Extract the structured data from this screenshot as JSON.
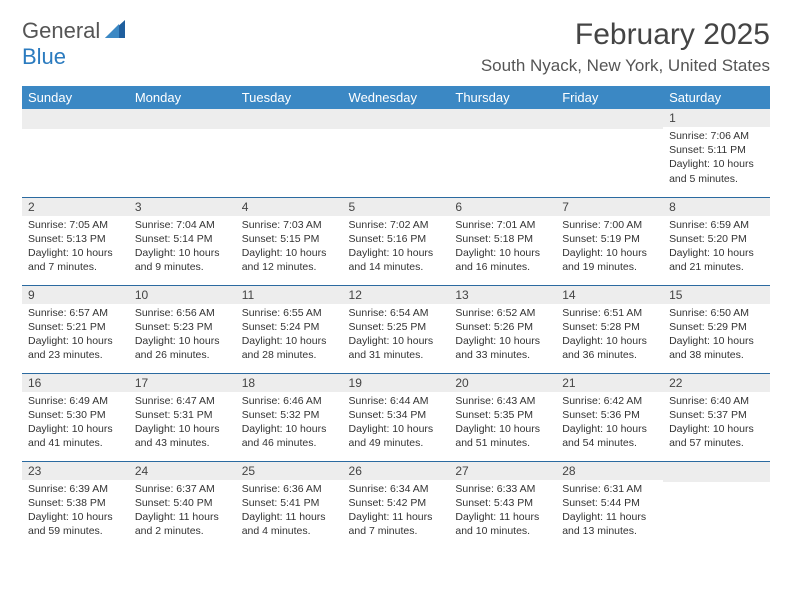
{
  "logo": {
    "line1": "General",
    "line2": "Blue"
  },
  "title": "February 2025",
  "location": "South Nyack, New York, United States",
  "theme": {
    "header_bg": "#3b88c4",
    "rule": "#2b6aa0",
    "daynum_bg": "#ededed"
  },
  "day_headers": [
    "Sunday",
    "Monday",
    "Tuesday",
    "Wednesday",
    "Thursday",
    "Friday",
    "Saturday"
  ],
  "weeks": [
    [
      null,
      null,
      null,
      null,
      null,
      null,
      {
        "n": "1",
        "sr": "Sunrise: 7:06 AM",
        "ss": "Sunset: 5:11 PM",
        "d1": "Daylight: 10 hours",
        "d2": "and 5 minutes."
      }
    ],
    [
      {
        "n": "2",
        "sr": "Sunrise: 7:05 AM",
        "ss": "Sunset: 5:13 PM",
        "d1": "Daylight: 10 hours",
        "d2": "and 7 minutes."
      },
      {
        "n": "3",
        "sr": "Sunrise: 7:04 AM",
        "ss": "Sunset: 5:14 PM",
        "d1": "Daylight: 10 hours",
        "d2": "and 9 minutes."
      },
      {
        "n": "4",
        "sr": "Sunrise: 7:03 AM",
        "ss": "Sunset: 5:15 PM",
        "d1": "Daylight: 10 hours",
        "d2": "and 12 minutes."
      },
      {
        "n": "5",
        "sr": "Sunrise: 7:02 AM",
        "ss": "Sunset: 5:16 PM",
        "d1": "Daylight: 10 hours",
        "d2": "and 14 minutes."
      },
      {
        "n": "6",
        "sr": "Sunrise: 7:01 AM",
        "ss": "Sunset: 5:18 PM",
        "d1": "Daylight: 10 hours",
        "d2": "and 16 minutes."
      },
      {
        "n": "7",
        "sr": "Sunrise: 7:00 AM",
        "ss": "Sunset: 5:19 PM",
        "d1": "Daylight: 10 hours",
        "d2": "and 19 minutes."
      },
      {
        "n": "8",
        "sr": "Sunrise: 6:59 AM",
        "ss": "Sunset: 5:20 PM",
        "d1": "Daylight: 10 hours",
        "d2": "and 21 minutes."
      }
    ],
    [
      {
        "n": "9",
        "sr": "Sunrise: 6:57 AM",
        "ss": "Sunset: 5:21 PM",
        "d1": "Daylight: 10 hours",
        "d2": "and 23 minutes."
      },
      {
        "n": "10",
        "sr": "Sunrise: 6:56 AM",
        "ss": "Sunset: 5:23 PM",
        "d1": "Daylight: 10 hours",
        "d2": "and 26 minutes."
      },
      {
        "n": "11",
        "sr": "Sunrise: 6:55 AM",
        "ss": "Sunset: 5:24 PM",
        "d1": "Daylight: 10 hours",
        "d2": "and 28 minutes."
      },
      {
        "n": "12",
        "sr": "Sunrise: 6:54 AM",
        "ss": "Sunset: 5:25 PM",
        "d1": "Daylight: 10 hours",
        "d2": "and 31 minutes."
      },
      {
        "n": "13",
        "sr": "Sunrise: 6:52 AM",
        "ss": "Sunset: 5:26 PM",
        "d1": "Daylight: 10 hours",
        "d2": "and 33 minutes."
      },
      {
        "n": "14",
        "sr": "Sunrise: 6:51 AM",
        "ss": "Sunset: 5:28 PM",
        "d1": "Daylight: 10 hours",
        "d2": "and 36 minutes."
      },
      {
        "n": "15",
        "sr": "Sunrise: 6:50 AM",
        "ss": "Sunset: 5:29 PM",
        "d1": "Daylight: 10 hours",
        "d2": "and 38 minutes."
      }
    ],
    [
      {
        "n": "16",
        "sr": "Sunrise: 6:49 AM",
        "ss": "Sunset: 5:30 PM",
        "d1": "Daylight: 10 hours",
        "d2": "and 41 minutes."
      },
      {
        "n": "17",
        "sr": "Sunrise: 6:47 AM",
        "ss": "Sunset: 5:31 PM",
        "d1": "Daylight: 10 hours",
        "d2": "and 43 minutes."
      },
      {
        "n": "18",
        "sr": "Sunrise: 6:46 AM",
        "ss": "Sunset: 5:32 PM",
        "d1": "Daylight: 10 hours",
        "d2": "and 46 minutes."
      },
      {
        "n": "19",
        "sr": "Sunrise: 6:44 AM",
        "ss": "Sunset: 5:34 PM",
        "d1": "Daylight: 10 hours",
        "d2": "and 49 minutes."
      },
      {
        "n": "20",
        "sr": "Sunrise: 6:43 AM",
        "ss": "Sunset: 5:35 PM",
        "d1": "Daylight: 10 hours",
        "d2": "and 51 minutes."
      },
      {
        "n": "21",
        "sr": "Sunrise: 6:42 AM",
        "ss": "Sunset: 5:36 PM",
        "d1": "Daylight: 10 hours",
        "d2": "and 54 minutes."
      },
      {
        "n": "22",
        "sr": "Sunrise: 6:40 AM",
        "ss": "Sunset: 5:37 PM",
        "d1": "Daylight: 10 hours",
        "d2": "and 57 minutes."
      }
    ],
    [
      {
        "n": "23",
        "sr": "Sunrise: 6:39 AM",
        "ss": "Sunset: 5:38 PM",
        "d1": "Daylight: 10 hours",
        "d2": "and 59 minutes."
      },
      {
        "n": "24",
        "sr": "Sunrise: 6:37 AM",
        "ss": "Sunset: 5:40 PM",
        "d1": "Daylight: 11 hours",
        "d2": "and 2 minutes."
      },
      {
        "n": "25",
        "sr": "Sunrise: 6:36 AM",
        "ss": "Sunset: 5:41 PM",
        "d1": "Daylight: 11 hours",
        "d2": "and 4 minutes."
      },
      {
        "n": "26",
        "sr": "Sunrise: 6:34 AM",
        "ss": "Sunset: 5:42 PM",
        "d1": "Daylight: 11 hours",
        "d2": "and 7 minutes."
      },
      {
        "n": "27",
        "sr": "Sunrise: 6:33 AM",
        "ss": "Sunset: 5:43 PM",
        "d1": "Daylight: 11 hours",
        "d2": "and 10 minutes."
      },
      {
        "n": "28",
        "sr": "Sunrise: 6:31 AM",
        "ss": "Sunset: 5:44 PM",
        "d1": "Daylight: 11 hours",
        "d2": "and 13 minutes."
      },
      null
    ]
  ]
}
